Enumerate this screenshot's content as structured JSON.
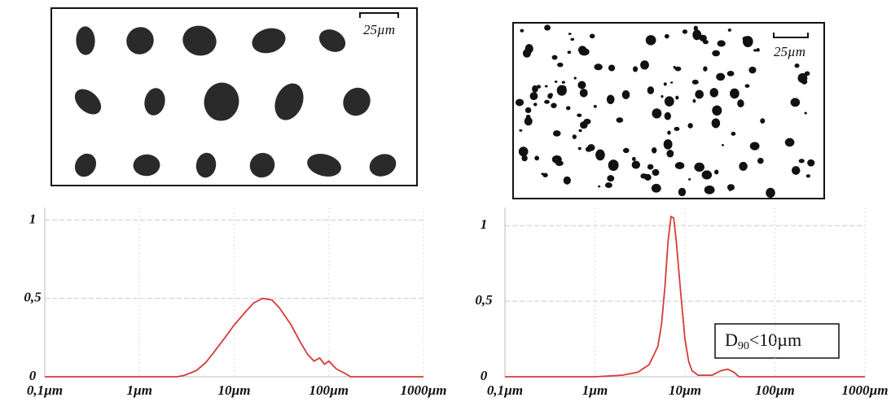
{
  "images": [
    {
      "scale_label": "25µm"
    },
    {
      "scale_label": "25µm"
    }
  ],
  "chart_data": [
    {
      "type": "line",
      "log_x": true,
      "grid": true,
      "color": "#d63a3a",
      "x": [
        0.1,
        2.5,
        3,
        4,
        5,
        6,
        8,
        10,
        13,
        16,
        20,
        25,
        30,
        40,
        50,
        60,
        70,
        80,
        90,
        100,
        120,
        150,
        170,
        1000
      ],
      "values": [
        0,
        0,
        0.01,
        0.04,
        0.09,
        0.15,
        0.25,
        0.33,
        0.41,
        0.47,
        0.5,
        0.49,
        0.44,
        0.33,
        0.22,
        0.14,
        0.1,
        0.12,
        0.08,
        0.1,
        0.05,
        0.02,
        0,
        0
      ],
      "xlim": [
        0.1,
        1000
      ],
      "xticks": [
        {
          "value": 0.1,
          "label": "0,1µm"
        },
        {
          "value": 1,
          "label": "1µm"
        },
        {
          "value": 10,
          "label": "10µm"
        },
        {
          "value": 100,
          "label": "100µm"
        },
        {
          "value": 1000,
          "label": "1000µm"
        }
      ],
      "ylim": [
        0,
        1.08
      ],
      "yticks": [
        0,
        {
          "value": 0.5,
          "label": "0,5"
        },
        1
      ]
    },
    {
      "type": "line",
      "log_x": true,
      "grid": true,
      "color": "#d63a3a",
      "annotation": [
        "D",
        "90",
        "<10µm"
      ],
      "x": [
        0.1,
        1,
        2,
        3,
        4,
        5,
        5.5,
        6,
        6.5,
        7,
        7.5,
        8,
        9,
        10,
        11,
        12,
        14,
        20,
        25,
        30,
        35,
        40,
        1000
      ],
      "values": [
        0,
        0,
        0.01,
        0.03,
        0.08,
        0.2,
        0.35,
        0.6,
        0.9,
        1.06,
        1.05,
        0.9,
        0.55,
        0.25,
        0.1,
        0.04,
        0.01,
        0.01,
        0.04,
        0.05,
        0.03,
        0,
        0
      ],
      "xlim": [
        0.1,
        1000
      ],
      "xticks": [
        {
          "value": 0.1,
          "label": "0,1µm"
        },
        {
          "value": 1,
          "label": "1µm"
        },
        {
          "value": 10,
          "label": "10µm"
        },
        {
          "value": 100,
          "label": "100µm"
        },
        {
          "value": 1000,
          "label": "1000µm"
        }
      ],
      "ylim": [
        0,
        1.12
      ],
      "yticks": [
        0,
        {
          "value": 0.5,
          "label": "0,5"
        },
        1
      ]
    }
  ]
}
